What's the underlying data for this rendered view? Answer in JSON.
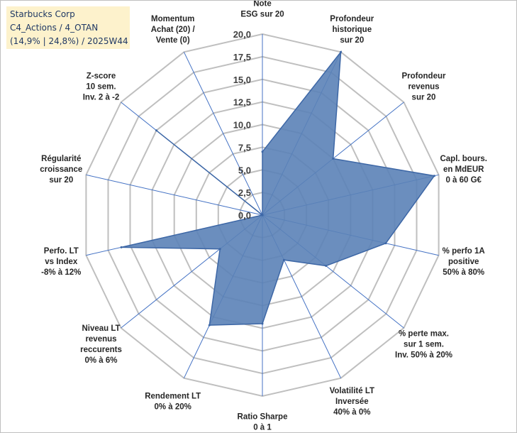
{
  "title": {
    "line1": "Starbucks Corp",
    "line2": "C4_Actions / 4_OTAN",
    "line3": "(14,9% | 24,8%) / 2025W44"
  },
  "colors": {
    "fill": "#5b82b7",
    "stroke": "#3d67a6",
    "grid": "#bfbfbf",
    "spoke": "#4472c4",
    "titlebox": "#fdf2cc"
  },
  "chart_data": {
    "type": "radar",
    "rmin": 0,
    "rmax": 20,
    "ticks": [
      "0,0",
      "2,5",
      "5,0",
      "7,5",
      "10,0",
      "12,5",
      "15,0",
      "17,5",
      "20,0"
    ],
    "axes": [
      {
        "lines": [
          "Note",
          "ESG sur 20"
        ],
        "value": 7
      },
      {
        "lines": [
          "Profondeur",
          "historique",
          "sur 20"
        ],
        "value": 20
      },
      {
        "lines": [
          "Profondeur",
          "revenus",
          "sur 20"
        ],
        "value": 10
      },
      {
        "lines": [
          "Capl. bours.",
          "en MdEUR",
          "0 à 60 G€"
        ],
        "value": 19.5
      },
      {
        "lines": [
          "% perfo 1A",
          "positive",
          "50% à 80%"
        ],
        "value": 14
      },
      {
        "lines": [
          "% perte max.",
          "sur 1 sem.",
          "Inv. 50% à 20%"
        ],
        "value": 9
      },
      {
        "lines": [
          "Volatilité LT",
          "Inversée",
          "40% à 0%"
        ],
        "value": 5.5
      },
      {
        "lines": [
          "Ratio Sharpe",
          "0 à 1"
        ],
        "value": 12
      },
      {
        "lines": [
          "Rendement LT",
          "0% à 20%"
        ],
        "value": 13.5
      },
      {
        "lines": [
          "Niveau LT",
          "revenus",
          "reccurents",
          "0% à 6%"
        ],
        "value": 6
      },
      {
        "lines": [
          "Perfo. LT",
          "vs Index",
          "-8% à 12%"
        ],
        "value": 16
      },
      {
        "lines": [
          "Régularité",
          "croissance",
          "sur 20"
        ],
        "value": 0
      },
      {
        "lines": [
          "Z-score",
          "10 sem.",
          "Inv. 2 à -2"
        ],
        "value": 15
      },
      {
        "lines": [
          "Momentum",
          "Achat (20) /",
          "Vente (0)"
        ],
        "value": 0
      }
    ]
  }
}
